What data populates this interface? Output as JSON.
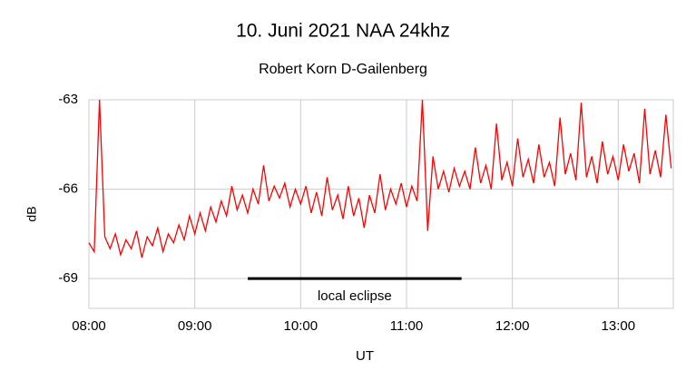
{
  "chart_data": {
    "type": "line",
    "title": "10. Juni 2021 NAA 24khz",
    "subtitle": "Robert Korn D-Gailenberg",
    "x_label": "UT",
    "y_label": "dB",
    "xlim": [
      8,
      13.52
    ],
    "ylim": [
      -70,
      -63
    ],
    "xticks": [
      {
        "value": 8,
        "label": "08:00"
      },
      {
        "value": 9,
        "label": "09:00"
      },
      {
        "value": 10,
        "label": "10:00"
      },
      {
        "value": 11,
        "label": "11:00"
      },
      {
        "value": 12,
        "label": "12:00"
      },
      {
        "value": 13,
        "label": "13:00"
      }
    ],
    "yticks": [
      -63,
      -66,
      -69
    ],
    "grid": true,
    "annotation": {
      "text": "local eclipse",
      "x": [
        9.5,
        11.52
      ],
      "y": -69
    },
    "x": [
      8.0,
      8.05,
      8.1,
      8.15,
      8.2,
      8.25,
      8.3,
      8.35,
      8.4,
      8.45,
      8.5,
      8.55,
      8.6,
      8.65,
      8.7,
      8.75,
      8.8,
      8.85,
      8.9,
      8.95,
      9.0,
      9.05,
      9.1,
      9.15,
      9.2,
      9.25,
      9.3,
      9.35,
      9.4,
      9.45,
      9.5,
      9.55,
      9.6,
      9.65,
      9.7,
      9.75,
      9.8,
      9.85,
      9.9,
      9.95,
      10.0,
      10.05,
      10.1,
      10.15,
      10.2,
      10.25,
      10.3,
      10.35,
      10.4,
      10.45,
      10.5,
      10.55,
      10.6,
      10.65,
      10.7,
      10.75,
      10.8,
      10.85,
      10.9,
      10.95,
      11.0,
      11.05,
      11.1,
      11.15,
      11.2,
      11.25,
      11.3,
      11.35,
      11.4,
      11.45,
      11.5,
      11.55,
      11.6,
      11.65,
      11.7,
      11.75,
      11.8,
      11.85,
      11.9,
      11.95,
      12.0,
      12.05,
      12.1,
      12.15,
      12.2,
      12.25,
      12.3,
      12.35,
      12.4,
      12.45,
      12.5,
      12.55,
      12.6,
      12.65,
      12.7,
      12.75,
      12.8,
      12.85,
      12.9,
      12.95,
      13.0,
      13.05,
      13.1,
      13.15,
      13.2,
      13.25,
      13.3,
      13.35,
      13.4,
      13.45,
      13.5
    ],
    "series": [
      {
        "color": "#ff0000",
        "values": [
          -67.8,
          -68.1,
          -63.0,
          -67.6,
          -68.0,
          -67.5,
          -68.2,
          -67.7,
          -68.0,
          -67.4,
          -68.3,
          -67.6,
          -67.9,
          -67.3,
          -68.1,
          -67.5,
          -67.8,
          -67.2,
          -67.7,
          -66.9,
          -67.5,
          -66.8,
          -67.4,
          -66.6,
          -67.1,
          -66.4,
          -66.9,
          -65.9,
          -66.7,
          -66.2,
          -66.8,
          -66.0,
          -66.5,
          -65.2,
          -66.4,
          -65.9,
          -66.3,
          -65.8,
          -66.6,
          -66.0,
          -66.5,
          -65.9,
          -66.8,
          -66.1,
          -66.9,
          -65.6,
          -66.7,
          -66.2,
          -67.0,
          -65.9,
          -66.9,
          -66.3,
          -67.3,
          -66.2,
          -66.8,
          -65.5,
          -66.7,
          -66.0,
          -66.5,
          -65.8,
          -66.6,
          -65.9,
          -66.4,
          -63.0,
          -67.4,
          -64.9,
          -66.0,
          -65.4,
          -66.1,
          -65.3,
          -65.9,
          -65.4,
          -66.0,
          -64.6,
          -65.8,
          -65.2,
          -66.0,
          -63.8,
          -65.7,
          -65.1,
          -65.9,
          -64.3,
          -65.6,
          -65.0,
          -65.8,
          -64.5,
          -65.6,
          -65.1,
          -65.9,
          -63.6,
          -65.5,
          -64.8,
          -65.7,
          -63.1,
          -65.6,
          -64.9,
          -65.8,
          -64.4,
          -65.5,
          -64.9,
          -65.7,
          -64.5,
          -65.4,
          -64.8,
          -65.8,
          -63.3,
          -65.5,
          -64.7,
          -65.6,
          -63.5,
          -65.3
        ]
      }
    ]
  }
}
